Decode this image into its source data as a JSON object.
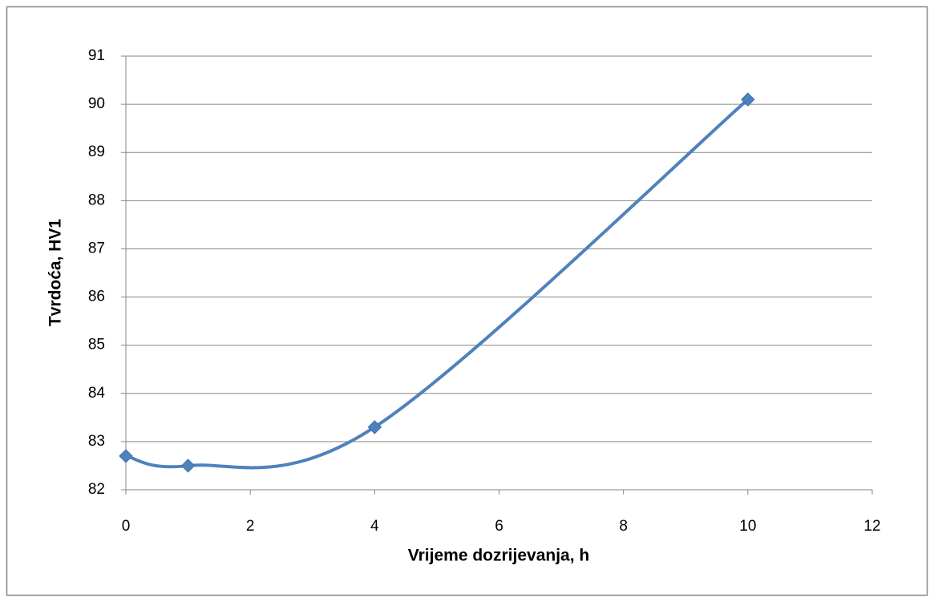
{
  "chart_data": {
    "type": "line",
    "x_label": "Vrijeme dozrijevanja, h",
    "y_label": "Tvrdoća, HV1",
    "x": [
      0,
      1,
      4,
      10
    ],
    "series": [
      {
        "color": "#4f81bd",
        "values": [
          82.7,
          82.5,
          83.3,
          90.1
        ]
      }
    ],
    "smooth": true,
    "xlim": [
      0,
      12
    ],
    "xticks": [
      0,
      2,
      4,
      6,
      8,
      10,
      12
    ],
    "ylim": [
      82,
      91
    ],
    "yticks": [
      82,
      83,
      84,
      85,
      86,
      87,
      88,
      89,
      90,
      91
    ],
    "grid": true
  }
}
